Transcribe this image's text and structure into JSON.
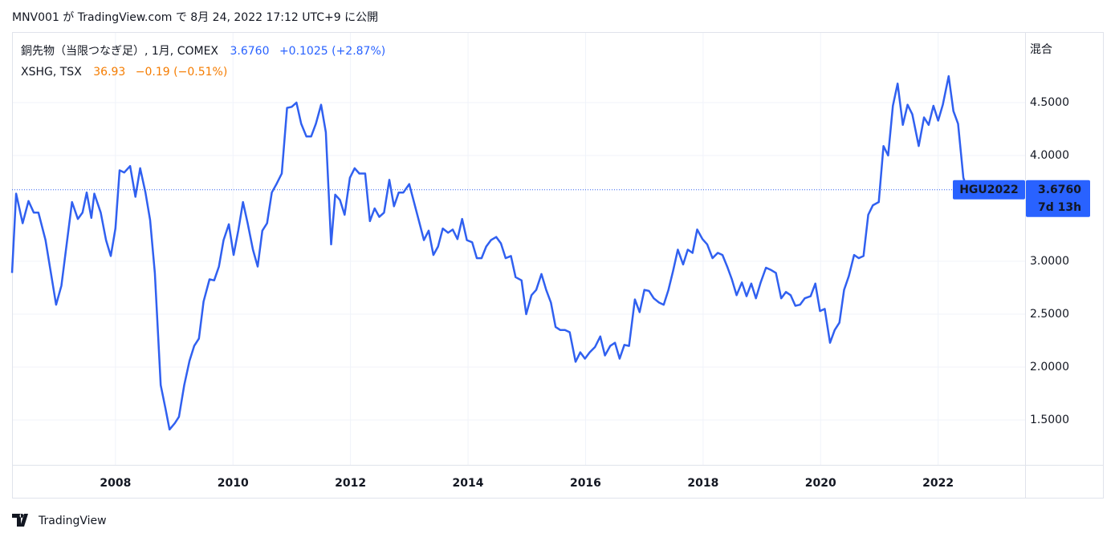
{
  "header": "MNV001 が TradingView.com で 8月 24, 2022 17:12 UTC+9 に公開",
  "footer": "TradingView",
  "chart_data": {
    "type": "line",
    "scale_mode": "混合",
    "grid": true,
    "x": [
      2006.24,
      2006.31,
      2006.42,
      2006.52,
      2006.61,
      2006.69,
      2006.81,
      2006.99,
      2007.08,
      2007.26,
      2007.36,
      2007.44,
      2007.51,
      2007.59,
      2007.64,
      2007.75,
      2007.84,
      2007.92,
      2008.0,
      2008.07,
      2008.15,
      2008.25,
      2008.34,
      2008.42,
      2008.51,
      2008.59,
      2008.67,
      2008.77,
      2008.85,
      2008.92,
      2009.01,
      2009.08,
      2009.17,
      2009.26,
      2009.34,
      2009.42,
      2009.5,
      2009.6,
      2009.68,
      2009.76,
      2009.84,
      2009.93,
      2010.01,
      2010.09,
      2010.17,
      2010.25,
      2010.34,
      2010.42,
      2010.5,
      2010.58,
      2010.66,
      2010.74,
      2010.83,
      2010.92,
      2011.0,
      2011.08,
      2011.16,
      2011.25,
      2011.33,
      2011.41,
      2011.5,
      2011.58,
      2011.67,
      2011.74,
      2011.82,
      2011.9,
      2011.99,
      2012.07,
      2012.15,
      2012.25,
      2012.33,
      2012.41,
      2012.49,
      2012.57,
      2012.66,
      2012.74,
      2012.82,
      2012.9,
      2013.0,
      2013.08,
      2013.16,
      2013.25,
      2013.33,
      2013.41,
      2013.49,
      2013.57,
      2013.66,
      2013.74,
      2013.82,
      2013.9,
      2013.98,
      2014.07,
      2014.15,
      2014.23,
      2014.31,
      2014.39,
      2014.48,
      2014.56,
      2014.64,
      2014.73,
      2014.81,
      2014.91,
      2014.99,
      2015.08,
      2015.16,
      2015.25,
      2015.33,
      2015.41,
      2015.49,
      2015.57,
      2015.65,
      2015.73,
      2015.83,
      2015.91,
      2015.99,
      2016.07,
      2016.16,
      2016.25,
      2016.33,
      2016.42,
      2016.5,
      2016.58,
      2016.66,
      2016.74,
      2016.84,
      2016.92,
      2017.0,
      2017.08,
      2017.16,
      2017.25,
      2017.33,
      2017.41,
      2017.49,
      2017.57,
      2017.66,
      2017.74,
      2017.82,
      2017.9,
      2017.99,
      2018.07,
      2018.16,
      2018.25,
      2018.33,
      2018.41,
      2018.49,
      2018.57,
      2018.66,
      2018.74,
      2018.82,
      2018.9,
      2018.98,
      2019.07,
      2019.15,
      2019.24,
      2019.33,
      2019.41,
      2019.49,
      2019.57,
      2019.65,
      2019.73,
      2019.83,
      2019.91,
      2019.99,
      2020.07,
      2020.16,
      2020.24,
      2020.32,
      2020.4,
      2020.48,
      2020.57,
      2020.65,
      2020.73,
      2020.81,
      2020.89,
      2020.99,
      2021.07,
      2021.15,
      2021.23,
      2021.31,
      2021.4,
      2021.48,
      2021.56,
      2021.67,
      2021.76,
      2021.84,
      2021.92,
      2022.0,
      2022.08,
      2022.18,
      2022.26,
      2022.34,
      2022.43,
      2022.5
    ],
    "series": [
      {
        "name": "銅先物（当限つなぎ足）, 1月, COMEX",
        "color": "#3060f0",
        "last_label": "3.6760",
        "change": "+0.1025 (+2.87%)",
        "values": [
          2.89,
          3.64,
          3.36,
          3.57,
          3.46,
          3.46,
          3.2,
          2.59,
          2.77,
          3.56,
          3.4,
          3.46,
          3.65,
          3.41,
          3.64,
          3.46,
          3.2,
          3.05,
          3.31,
          3.86,
          3.84,
          3.9,
          3.61,
          3.88,
          3.65,
          3.39,
          2.89,
          1.83,
          1.61,
          1.41,
          1.47,
          1.53,
          1.83,
          2.06,
          2.2,
          2.27,
          2.62,
          2.83,
          2.82,
          2.95,
          3.2,
          3.35,
          3.06,
          3.29,
          3.56,
          3.36,
          3.11,
          2.95,
          3.29,
          3.36,
          3.65,
          3.73,
          3.83,
          4.45,
          4.46,
          4.5,
          4.3,
          4.18,
          4.18,
          4.3,
          4.48,
          4.22,
          3.16,
          3.63,
          3.58,
          3.44,
          3.79,
          3.88,
          3.83,
          3.83,
          3.38,
          3.5,
          3.42,
          3.46,
          3.77,
          3.52,
          3.65,
          3.65,
          3.73,
          3.56,
          3.39,
          3.2,
          3.29,
          3.06,
          3.14,
          3.31,
          3.27,
          3.3,
          3.21,
          3.4,
          3.2,
          3.18,
          3.03,
          3.03,
          3.14,
          3.2,
          3.23,
          3.17,
          3.03,
          3.05,
          2.85,
          2.82,
          2.5,
          2.68,
          2.73,
          2.88,
          2.73,
          2.61,
          2.38,
          2.35,
          2.35,
          2.33,
          2.05,
          2.14,
          2.08,
          2.14,
          2.19,
          2.29,
          2.11,
          2.2,
          2.23,
          2.08,
          2.21,
          2.2,
          2.64,
          2.52,
          2.73,
          2.72,
          2.65,
          2.61,
          2.59,
          2.73,
          2.91,
          3.11,
          2.97,
          3.11,
          3.08,
          3.3,
          3.21,
          3.16,
          3.03,
          3.08,
          3.06,
          2.95,
          2.83,
          2.68,
          2.8,
          2.67,
          2.79,
          2.65,
          2.8,
          2.94,
          2.92,
          2.89,
          2.65,
          2.71,
          2.68,
          2.58,
          2.59,
          2.65,
          2.67,
          2.79,
          2.53,
          2.55,
          2.23,
          2.35,
          2.42,
          2.73,
          2.86,
          3.06,
          3.03,
          3.05,
          3.44,
          3.53,
          3.56,
          4.09,
          4.0,
          4.47,
          4.68,
          4.29,
          4.48,
          4.39,
          4.09,
          4.36,
          4.29,
          4.47,
          4.33,
          4.48,
          4.75,
          4.42,
          4.3,
          3.79,
          3.676
        ]
      }
    ],
    "compare": {
      "name": "XSHG, TSX",
      "last_label": "36.93",
      "change": "−0.19 (−0.51%)",
      "color": "#f57c00"
    },
    "price_line": {
      "value": 3.676,
      "label": "3.6760"
    },
    "symbol_tag": "HGU2022",
    "countdown": "7d 13h",
    "xlim": [
      2006.24,
      2023.48
    ],
    "xticks": [
      2008,
      2010,
      2012,
      2014,
      2016,
      2018,
      2020,
      2022
    ],
    "ylim": [
      1.076,
      5.167
    ],
    "yticks": [
      {
        "value": 1.5,
        "label": "1.5000"
      },
      {
        "value": 2.0,
        "label": "2.0000"
      },
      {
        "value": 2.5,
        "label": "2.5000"
      },
      {
        "value": 3.0,
        "label": "3.0000"
      },
      {
        "value": 4.0,
        "label": "4.0000"
      },
      {
        "value": 4.5,
        "label": "4.5000"
      }
    ]
  }
}
